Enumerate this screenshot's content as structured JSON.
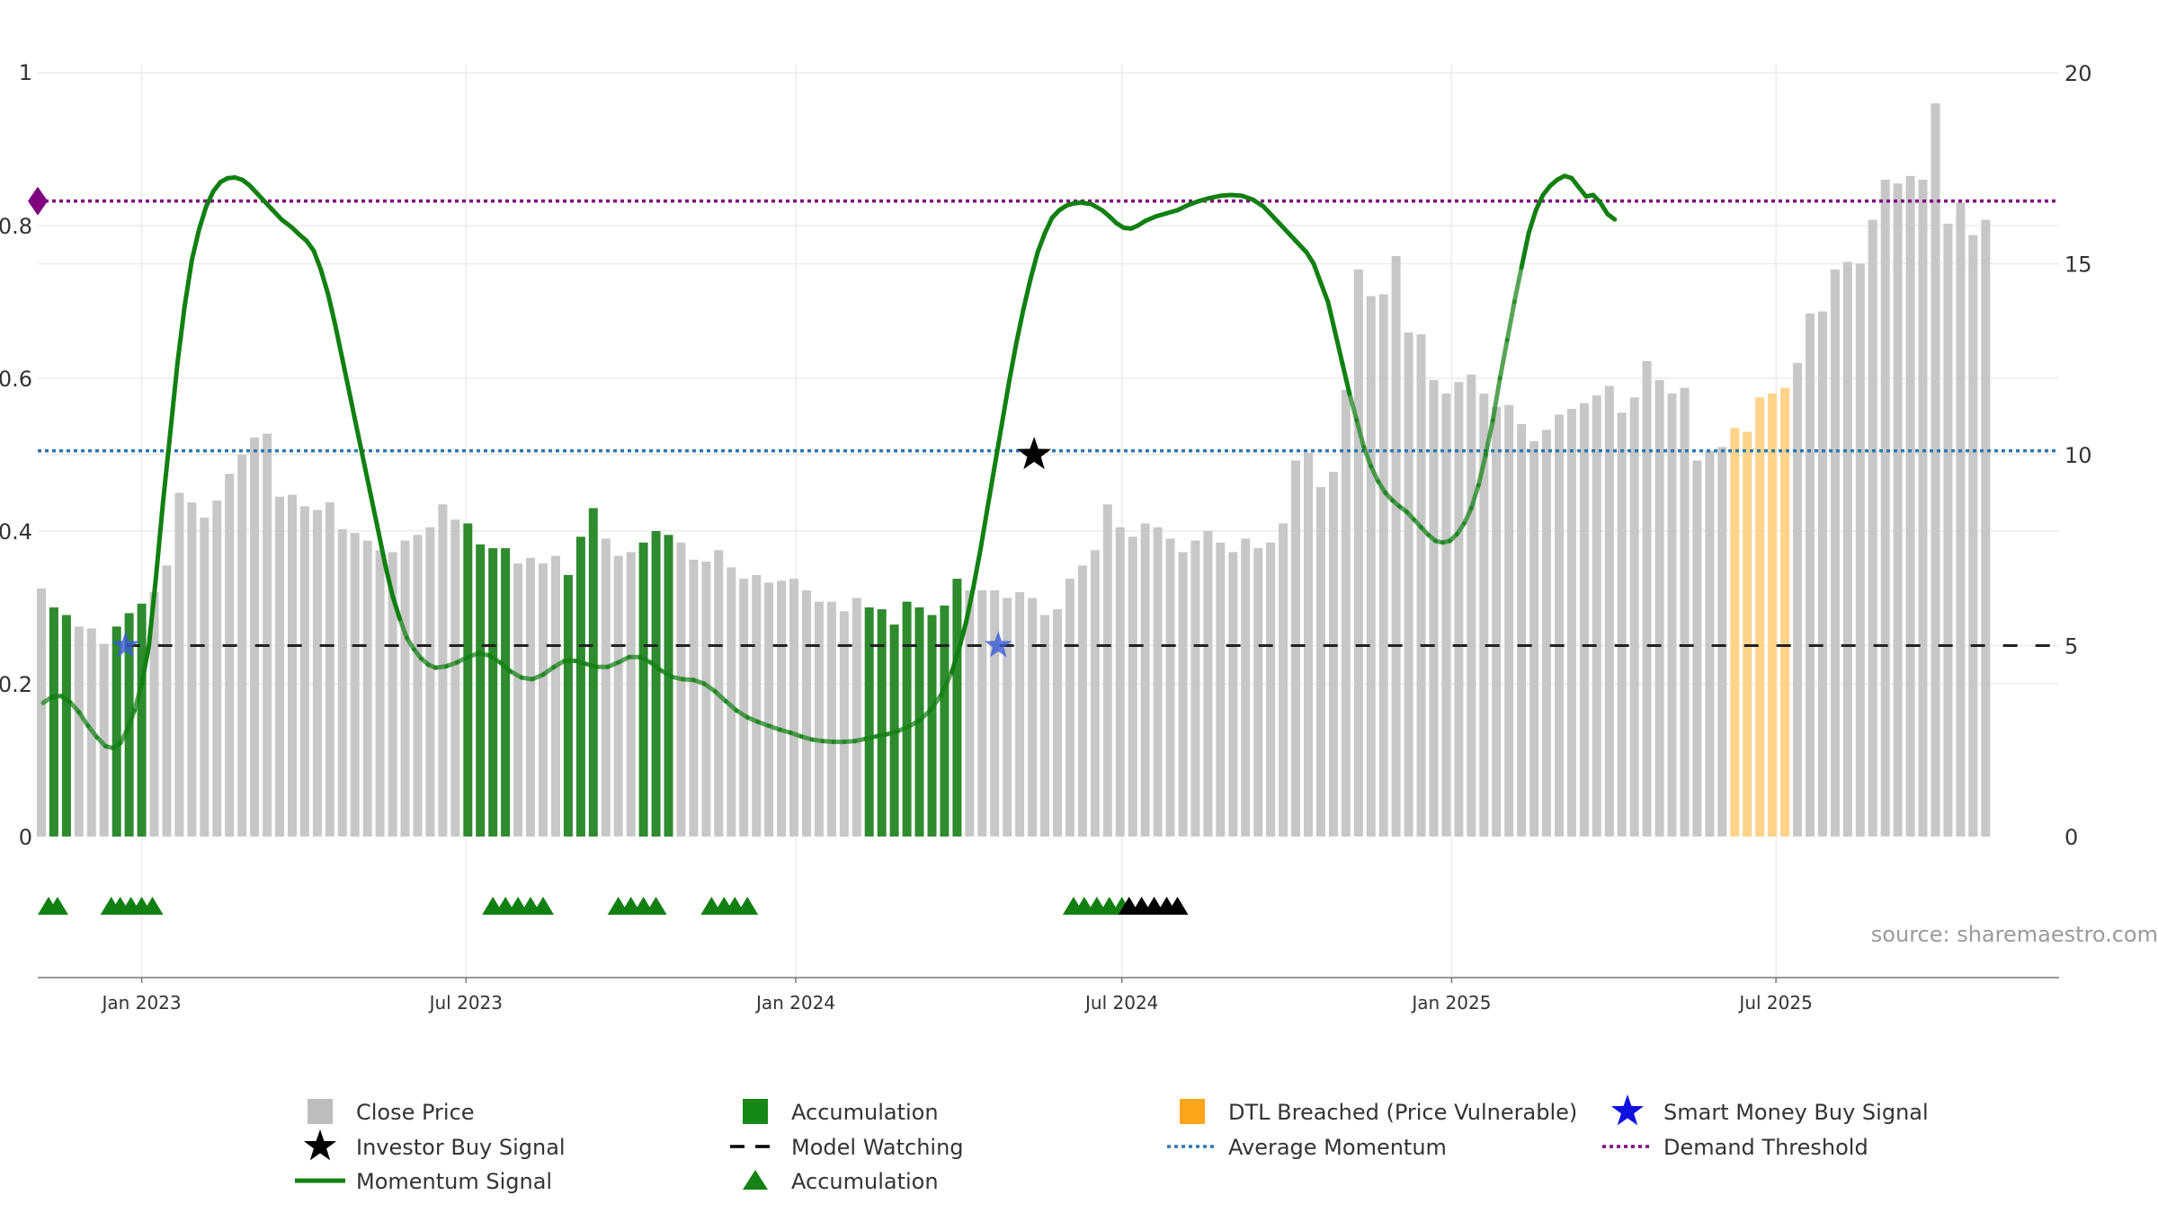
{
  "chart_data": {
    "type": "bar",
    "title": "",
    "xlabel": "",
    "ylabel_left": "",
    "ylabel_right": "",
    "x_range_days": [
      -58,
      1070
    ],
    "x_origin": "2023-01-01",
    "left_axis": {
      "ylim": [
        0,
        1
      ],
      "ticks": [
        0,
        0.2,
        0.4,
        0.6,
        0.8
      ],
      "tick_labels": [
        "0",
        "0.2",
        "0.4",
        "0.6",
        "0.8"
      ],
      "top_label": "1"
    },
    "right_axis": {
      "ylim": [
        0,
        20
      ],
      "ticks": [
        0,
        5,
        10,
        15,
        20
      ],
      "tick_labels": [
        "0",
        "5",
        "10",
        "15",
        "20"
      ]
    },
    "x_ticks": [
      {
        "day": 0,
        "label": "Jan 2023"
      },
      {
        "day": 181,
        "label": "Jul 2023"
      },
      {
        "day": 365,
        "label": "Jan 2024"
      },
      {
        "day": 547,
        "label": "Jul 2024"
      },
      {
        "day": 731,
        "label": "Jan 2025"
      },
      {
        "day": 912,
        "label": "Jul 2025"
      }
    ],
    "close_price_weekly": {
      "start_day": -56,
      "step_days": 7,
      "values": [
        6.5,
        6.0,
        5.8,
        5.5,
        5.45,
        5.05,
        5.5,
        5.85,
        6.1,
        6.4,
        7.1,
        9.0,
        8.75,
        8.35,
        8.8,
        9.5,
        10.0,
        10.45,
        10.55,
        8.9,
        8.95,
        8.65,
        8.55,
        8.75,
        8.05,
        7.95,
        7.75,
        7.5,
        7.45,
        7.75,
        7.9,
        8.1,
        8.7,
        8.3,
        8.2,
        7.65,
        7.55,
        7.55,
        7.15,
        7.3,
        7.15,
        7.35,
        6.85,
        7.85,
        8.6,
        7.8,
        7.35,
        7.45,
        7.7,
        8.0,
        7.9,
        7.7,
        7.25,
        7.2,
        7.5,
        7.05,
        6.75,
        6.85,
        6.65,
        6.7,
        6.75,
        6.45,
        6.15,
        6.15,
        5.9,
        6.25,
        6.0,
        5.95,
        5.55,
        6.15,
        6.0,
        5.8,
        6.05,
        6.75,
        6.45,
        6.45,
        6.45,
        6.25,
        6.4,
        6.25,
        5.8,
        5.95,
        6.75,
        7.1,
        7.5,
        8.7,
        8.1,
        7.85,
        8.2,
        8.1,
        7.8,
        7.45,
        7.75,
        8.0,
        7.7,
        7.45,
        7.8,
        7.55,
        7.7,
        8.2,
        9.85,
        10.05,
        9.15,
        9.55,
        11.7,
        14.85,
        14.15,
        14.2,
        15.2,
        13.2,
        13.15,
        11.95,
        11.6,
        11.9,
        12.1,
        11.6,
        11.25,
        11.3,
        10.8,
        10.35,
        10.65,
        11.05,
        11.2,
        11.35,
        11.55,
        11.8,
        11.1,
        11.5,
        12.45,
        11.95,
        11.6,
        11.75,
        9.85,
        10.1,
        10.2,
        10.7,
        10.6,
        11.5,
        11.6,
        11.75,
        12.4,
        13.7,
        13.75,
        14.85,
        15.05,
        15.0,
        16.15,
        17.2,
        17.1,
        17.3,
        17.2,
        19.2,
        16.05,
        16.6,
        15.75,
        16.15
      ]
    },
    "accumulation_bar_days": [
      -49,
      -42,
      -14,
      -7,
      0,
      182,
      189,
      196,
      203,
      238,
      245,
      252,
      280,
      287,
      294,
      406,
      413,
      420,
      427,
      434,
      441,
      448,
      455
    ],
    "dtl_breached_bar_days": [
      889,
      896,
      903,
      910,
      917
    ],
    "momentum_signal": [
      [
        -55,
        0.175
      ],
      [
        -50,
        0.183
      ],
      [
        -45,
        0.184
      ],
      [
        -40,
        0.176
      ],
      [
        -35,
        0.163
      ],
      [
        -30,
        0.145
      ],
      [
        -25,
        0.13
      ],
      [
        -20,
        0.118
      ],
      [
        -16,
        0.116
      ],
      [
        -12,
        0.122
      ],
      [
        -8,
        0.14
      ],
      [
        -4,
        0.165
      ],
      [
        0,
        0.2
      ],
      [
        4,
        0.25
      ],
      [
        8,
        0.34
      ],
      [
        12,
        0.44
      ],
      [
        16,
        0.53
      ],
      [
        20,
        0.62
      ],
      [
        24,
        0.695
      ],
      [
        28,
        0.755
      ],
      [
        32,
        0.795
      ],
      [
        36,
        0.825
      ],
      [
        40,
        0.845
      ],
      [
        44,
        0.857
      ],
      [
        48,
        0.862
      ],
      [
        52,
        0.863
      ],
      [
        56,
        0.86
      ],
      [
        60,
        0.853
      ],
      [
        66,
        0.838
      ],
      [
        72,
        0.823
      ],
      [
        78,
        0.808
      ],
      [
        84,
        0.797
      ],
      [
        88,
        0.788
      ],
      [
        92,
        0.78
      ],
      [
        96,
        0.767
      ],
      [
        100,
        0.742
      ],
      [
        104,
        0.71
      ],
      [
        108,
        0.67
      ],
      [
        112,
        0.625
      ],
      [
        116,
        0.58
      ],
      [
        120,
        0.535
      ],
      [
        124,
        0.49
      ],
      [
        128,
        0.445
      ],
      [
        132,
        0.4
      ],
      [
        136,
        0.355
      ],
      [
        140,
        0.315
      ],
      [
        144,
        0.285
      ],
      [
        148,
        0.26
      ],
      [
        152,
        0.245
      ],
      [
        156,
        0.233
      ],
      [
        160,
        0.225
      ],
      [
        164,
        0.221
      ],
      [
        170,
        0.223
      ],
      [
        176,
        0.228
      ],
      [
        182,
        0.235
      ],
      [
        188,
        0.24
      ],
      [
        194,
        0.237
      ],
      [
        200,
        0.228
      ],
      [
        206,
        0.216
      ],
      [
        212,
        0.208
      ],
      [
        218,
        0.206
      ],
      [
        224,
        0.212
      ],
      [
        230,
        0.222
      ],
      [
        236,
        0.23
      ],
      [
        242,
        0.23
      ],
      [
        248,
        0.226
      ],
      [
        254,
        0.222
      ],
      [
        260,
        0.222
      ],
      [
        266,
        0.228
      ],
      [
        272,
        0.235
      ],
      [
        278,
        0.235
      ],
      [
        284,
        0.228
      ],
      [
        290,
        0.217
      ],
      [
        296,
        0.209
      ],
      [
        302,
        0.206
      ],
      [
        308,
        0.205
      ],
      [
        314,
        0.2
      ],
      [
        320,
        0.19
      ],
      [
        326,
        0.177
      ],
      [
        332,
        0.165
      ],
      [
        338,
        0.156
      ],
      [
        344,
        0.15
      ],
      [
        350,
        0.145
      ],
      [
        356,
        0.14
      ],
      [
        362,
        0.136
      ],
      [
        368,
        0.131
      ],
      [
        374,
        0.127
      ],
      [
        380,
        0.125
      ],
      [
        386,
        0.124
      ],
      [
        392,
        0.124
      ],
      [
        398,
        0.125
      ],
      [
        404,
        0.128
      ],
      [
        410,
        0.131
      ],
      [
        416,
        0.134
      ],
      [
        422,
        0.138
      ],
      [
        428,
        0.144
      ],
      [
        434,
        0.152
      ],
      [
        440,
        0.165
      ],
      [
        446,
        0.185
      ],
      [
        452,
        0.215
      ],
      [
        456,
        0.245
      ],
      [
        460,
        0.28
      ],
      [
        464,
        0.325
      ],
      [
        468,
        0.375
      ],
      [
        472,
        0.43
      ],
      [
        476,
        0.485
      ],
      [
        480,
        0.54
      ],
      [
        484,
        0.595
      ],
      [
        488,
        0.645
      ],
      [
        492,
        0.69
      ],
      [
        496,
        0.73
      ],
      [
        500,
        0.765
      ],
      [
        504,
        0.79
      ],
      [
        508,
        0.81
      ],
      [
        512,
        0.82
      ],
      [
        516,
        0.826
      ],
      [
        520,
        0.829
      ],
      [
        524,
        0.83
      ],
      [
        530,
        0.828
      ],
      [
        536,
        0.82
      ],
      [
        540,
        0.812
      ],
      [
        544,
        0.803
      ],
      [
        548,
        0.797
      ],
      [
        552,
        0.796
      ],
      [
        556,
        0.8
      ],
      [
        560,
        0.806
      ],
      [
        566,
        0.812
      ],
      [
        572,
        0.816
      ],
      [
        578,
        0.82
      ],
      [
        584,
        0.827
      ],
      [
        590,
        0.832
      ],
      [
        596,
        0.836
      ],
      [
        602,
        0.839
      ],
      [
        608,
        0.84
      ],
      [
        614,
        0.839
      ],
      [
        620,
        0.834
      ],
      [
        626,
        0.825
      ],
      [
        632,
        0.81
      ],
      [
        638,
        0.795
      ],
      [
        644,
        0.78
      ],
      [
        650,
        0.765
      ],
      [
        654,
        0.75
      ],
      [
        658,
        0.725
      ],
      [
        662,
        0.7
      ],
      [
        666,
        0.66
      ],
      [
        670,
        0.62
      ],
      [
        674,
        0.58
      ],
      [
        678,
        0.545
      ],
      [
        682,
        0.51
      ],
      [
        686,
        0.485
      ],
      [
        690,
        0.465
      ],
      [
        694,
        0.45
      ],
      [
        698,
        0.44
      ],
      [
        702,
        0.432
      ],
      [
        706,
        0.425
      ],
      [
        710,
        0.415
      ],
      [
        714,
        0.405
      ],
      [
        718,
        0.395
      ],
      [
        722,
        0.387
      ],
      [
        726,
        0.385
      ],
      [
        730,
        0.387
      ],
      [
        734,
        0.396
      ],
      [
        738,
        0.41
      ],
      [
        742,
        0.43
      ],
      [
        746,
        0.46
      ],
      [
        750,
        0.5
      ],
      [
        754,
        0.545
      ],
      [
        758,
        0.6
      ],
      [
        762,
        0.65
      ],
      [
        766,
        0.7
      ],
      [
        770,
        0.745
      ],
      [
        774,
        0.79
      ],
      [
        778,
        0.82
      ],
      [
        782,
        0.84
      ],
      [
        786,
        0.852
      ],
      [
        790,
        0.86
      ],
      [
        794,
        0.865
      ],
      [
        798,
        0.862
      ],
      [
        802,
        0.85
      ],
      [
        806,
        0.838
      ],
      [
        810,
        0.84
      ],
      [
        814,
        0.83
      ],
      [
        818,
        0.815
      ],
      [
        822,
        0.808
      ]
    ],
    "average_momentum": 0.505,
    "demand_threshold": 0.832,
    "model_watching": 0.25,
    "investor_buy_signal": {
      "day": 498,
      "value": 0.5
    },
    "smart_money_buy_signals": [
      {
        "day": -9,
        "value": 0.25
      },
      {
        "day": 478,
        "value": 0.25
      }
    ],
    "accumulation_markers_green": [
      -52,
      -47,
      -17,
      -12,
      -6,
      0,
      6,
      196,
      203,
      210,
      217,
      224,
      266,
      273,
      280,
      287,
      318,
      325,
      331,
      338,
      520,
      526,
      533,
      540,
      547
    ],
    "accumulation_markers_black": [
      551,
      558,
      565,
      572,
      578
    ],
    "demand_marker_day": -58,
    "legend": [
      {
        "key": "close",
        "label": "Close Price",
        "color": "#BDBDBD"
      },
      {
        "key": "accum_bar",
        "label": "Accumulation",
        "color": "#168816"
      },
      {
        "key": "dtl",
        "label": "DTL Breached (Price Vulnerable)",
        "color": "#FFA51C"
      },
      {
        "key": "smart",
        "label": "Smart Money Buy Signal",
        "color": "#1010E0"
      },
      {
        "key": "investor",
        "label": "Investor Buy Signal",
        "color": "#000000"
      },
      {
        "key": "watching",
        "label": "Model Watching",
        "color": "#000000"
      },
      {
        "key": "avg",
        "label": "Average Momentum",
        "color": "#2E78B0"
      },
      {
        "key": "demand",
        "label": "Demand Threshold",
        "color": "#800080"
      },
      {
        "key": "momentum",
        "label": "Momentum Signal",
        "color": "#148214"
      },
      {
        "key": "accum_marker",
        "label": "Accumulation",
        "color": "#148214"
      }
    ],
    "source": "source: sharemaestro.com"
  },
  "colors": {
    "close": "#C7C7C7",
    "accumulation": "#2E8B2E",
    "dtl": "#FFD38A",
    "momentum": "#118011",
    "avg": "#2E78B0",
    "demand": "#800080",
    "grid": "#EBEBEB",
    "axis": "#555555",
    "tick_text": "#333333",
    "source_text": "#9A9A9A"
  }
}
